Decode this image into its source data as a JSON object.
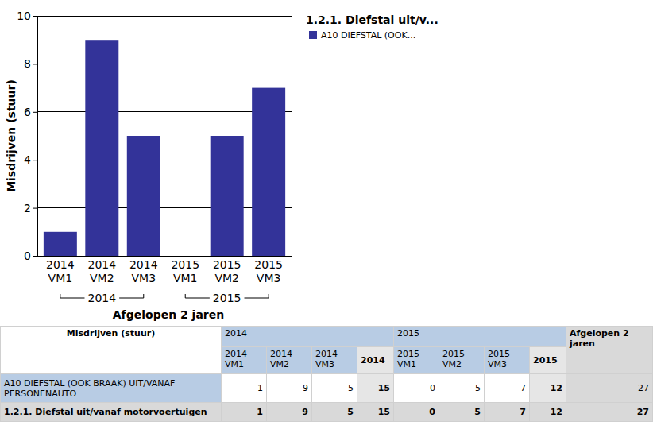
{
  "chart_data": {
    "type": "bar",
    "title": "1.2.1. Diefstal uit/v...",
    "x_label": "Afgelopen 2 jaren",
    "y_label": "Misdrijven (stuur)",
    "categories": [
      "2014 VM1",
      "2014 VM2",
      "2014 VM3",
      "2015 VM1",
      "2015 VM2",
      "2015 VM3"
    ],
    "groups": [
      "2014",
      "2015"
    ],
    "series": [
      {
        "name": "A10 DIEFSTAL (OOK...",
        "color": "#333399",
        "values": [
          1,
          9,
          5,
          0,
          5,
          7
        ]
      }
    ],
    "ylim": [
      0,
      10
    ],
    "yticks": [
      0,
      2,
      4,
      6,
      8,
      10
    ],
    "grid": true,
    "legend": "right"
  },
  "table": {
    "corner": "Misdrijven (stuur)",
    "groups": [
      "2014",
      "2015"
    ],
    "subheaders": [
      "2014 VM1",
      "2014 VM2",
      "2014 VM3",
      "2014",
      "2015 VM1",
      "2015 VM2",
      "2015 VM3",
      "2015"
    ],
    "total_header": "Afgelopen 2 jaren",
    "rows": [
      {
        "label": "A10 DIEFSTAL (OOK BRAAK) UIT/VANAF PERSONENAUTO",
        "values": [
          1,
          9,
          5,
          15,
          0,
          5,
          7,
          12,
          27
        ]
      },
      {
        "label": "1.2.1. Diefstal uit/vanaf motorvoertuigen",
        "values": [
          1,
          9,
          5,
          15,
          0,
          5,
          7,
          12,
          27
        ]
      }
    ]
  }
}
